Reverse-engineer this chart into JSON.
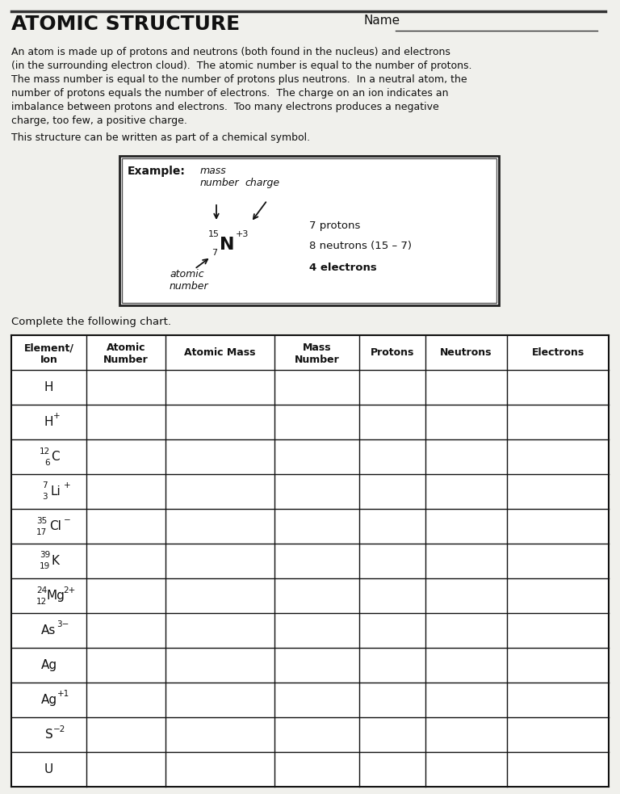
{
  "title": "ATOMIC STRUCTURE",
  "name_label": "Name",
  "symbol_intro": "This structure can be written as part of a chemical symbol.",
  "example_label": "Example:",
  "complete_text": "Complete the following chart.",
  "col_headers": [
    "Element/\nIon",
    "Atomic\nNumber",
    "Atomic Mass",
    "Mass\nNumber",
    "Protons",
    "Neutrons",
    "Electrons"
  ],
  "intro_lines": [
    "An atom is made up of protons and neutrons (both found in the nucleus) and electrons",
    "(in the surrounding electron cloud).  The atomic number is equal to the number of protons.",
    "The mass number is equal to the number of protons plus neutrons.  In a neutral atom, the",
    "number of protons equals the number of electrons.  The charge on an ion indicates an",
    "imbalance between protons and electrons.  Too many electrons produces a negative",
    "charge, too few, a positive charge."
  ],
  "bg_color": "#f0f0ec",
  "border_color": "#111111"
}
